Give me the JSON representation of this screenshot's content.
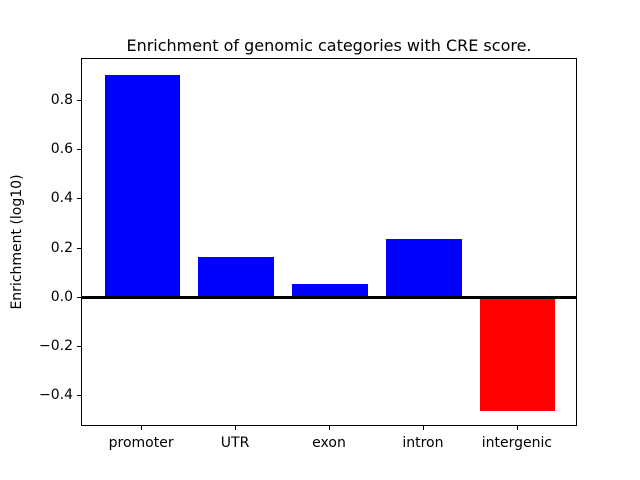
{
  "figure": {
    "background": "#ffffff",
    "axis_color": "#000000"
  },
  "chart_data": {
    "type": "bar",
    "title": "Enrichment of genomic categories with CRE score.",
    "ylabel": "Enrichment (log10)",
    "xlabel": "",
    "categories": [
      "promoter",
      "UTR",
      "exon",
      "intron",
      "intergenic"
    ],
    "values": [
      0.905,
      0.165,
      0.055,
      0.24,
      -0.46
    ],
    "bar_colors": [
      "#0000ff",
      "#0000ff",
      "#0000ff",
      "#0000ff",
      "#ff0000"
    ],
    "bar_color_rule": "blue for positive enrichment, red for negative",
    "bar_width": 0.8,
    "xlim": [
      -0.64,
      4.64
    ],
    "ylim": [
      -0.525,
      0.97
    ],
    "yticks": [
      0.8,
      0.6,
      0.4,
      0.2,
      0.0,
      -0.2,
      -0.4
    ],
    "ytick_labels": [
      "0.8",
      "0.6",
      "0.4",
      "0.2",
      "0.0",
      "−0.2",
      "−0.4"
    ],
    "zero_line": {
      "value": 0.0,
      "color": "#000000"
    },
    "grid": false,
    "legend": null
  }
}
